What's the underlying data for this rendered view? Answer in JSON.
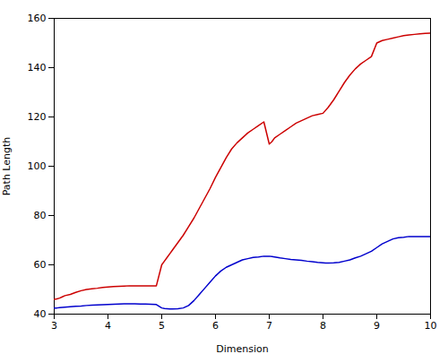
{
  "chart_data": {
    "type": "line",
    "xlabel": "Dimension",
    "ylabel": "Path Length",
    "xlim": [
      3,
      10
    ],
    "ylim": [
      40,
      160
    ],
    "xticks": [
      3,
      4,
      5,
      6,
      7,
      8,
      9,
      10
    ],
    "yticks": [
      40,
      60,
      80,
      100,
      120,
      140,
      160
    ],
    "grid": false,
    "series": [
      {
        "color": "#0000cd",
        "x": [
          3.0,
          3.05,
          3.1,
          3.15,
          3.2,
          3.3,
          3.4,
          3.5,
          3.6,
          3.7,
          3.8,
          3.9,
          4.0,
          4.1,
          4.2,
          4.3,
          4.4,
          4.5,
          4.6,
          4.7,
          4.8,
          4.9,
          5.0,
          5.05,
          5.1,
          5.15,
          5.2,
          5.3,
          5.4,
          5.5,
          5.6,
          5.7,
          5.8,
          5.9,
          6.0,
          6.1,
          6.2,
          6.3,
          6.4,
          6.5,
          6.6,
          6.7,
          6.8,
          6.9,
          7.0,
          7.05,
          7.1,
          7.15,
          7.2,
          7.3,
          7.4,
          7.5,
          7.6,
          7.7,
          7.8,
          7.9,
          8.0,
          8.05,
          8.1,
          8.2,
          8.3,
          8.4,
          8.5,
          8.6,
          8.7,
          8.8,
          8.9,
          9.0,
          9.1,
          9.2,
          9.3,
          9.4,
          9.5,
          9.6,
          9.7,
          9.8,
          9.9,
          10.0
        ],
        "values": [
          42.5,
          42.5,
          42.6,
          42.7,
          42.8,
          43.0,
          43.2,
          43.3,
          43.5,
          43.6,
          43.7,
          43.8,
          43.9,
          44.0,
          44.1,
          44.2,
          44.2,
          44.2,
          44.1,
          44.1,
          44.0,
          43.9,
          42.5,
          42.3,
          42.2,
          42.1,
          42.1,
          42.2,
          42.5,
          43.5,
          45.5,
          48.0,
          50.5,
          53.0,
          55.5,
          57.5,
          59.0,
          60.0,
          61.0,
          62.0,
          62.5,
          63.0,
          63.2,
          63.5,
          63.5,
          63.4,
          63.2,
          63.0,
          62.8,
          62.5,
          62.2,
          62.0,
          61.8,
          61.5,
          61.3,
          61.0,
          60.8,
          60.7,
          60.7,
          60.8,
          61.0,
          61.5,
          62.0,
          62.8,
          63.5,
          64.5,
          65.5,
          67.0,
          68.5,
          69.5,
          70.5,
          71.0,
          71.2,
          71.5,
          71.5,
          71.5,
          71.5,
          71.5
        ]
      },
      {
        "color": "#cc0000",
        "x": [
          3.0,
          3.05,
          3.1,
          3.15,
          3.2,
          3.3,
          3.4,
          3.5,
          3.6,
          3.7,
          3.8,
          3.9,
          4.0,
          4.1,
          4.2,
          4.3,
          4.4,
          4.5,
          4.6,
          4.7,
          4.8,
          4.9,
          5.0,
          5.05,
          5.1,
          5.15,
          5.2,
          5.3,
          5.4,
          5.5,
          5.6,
          5.7,
          5.8,
          5.9,
          6.0,
          6.1,
          6.2,
          6.3,
          6.4,
          6.5,
          6.6,
          6.7,
          6.8,
          6.9,
          7.0,
          7.05,
          7.1,
          7.2,
          7.3,
          7.4,
          7.5,
          7.6,
          7.7,
          7.8,
          7.9,
          8.0,
          8.1,
          8.2,
          8.3,
          8.4,
          8.5,
          8.6,
          8.7,
          8.8,
          8.9,
          9.0,
          9.1,
          9.2,
          9.3,
          9.4,
          9.5,
          9.6,
          9.7,
          9.8,
          9.9,
          10.0
        ],
        "values": [
          46.0,
          46.2,
          46.5,
          47.0,
          47.5,
          48.0,
          48.8,
          49.5,
          50.0,
          50.3,
          50.5,
          50.8,
          51.0,
          51.2,
          51.3,
          51.4,
          51.5,
          51.5,
          51.5,
          51.5,
          51.5,
          51.5,
          60.0,
          61.5,
          63.0,
          64.5,
          66.0,
          69.0,
          72.0,
          75.5,
          79.0,
          83.0,
          87.0,
          91.0,
          95.5,
          99.5,
          103.5,
          107.0,
          109.5,
          111.5,
          113.5,
          115.0,
          116.5,
          118.0,
          109.0,
          110.0,
          111.5,
          113.0,
          114.5,
          116.0,
          117.5,
          118.5,
          119.5,
          120.5,
          121.0,
          121.5,
          124.0,
          127.0,
          130.5,
          134.0,
          137.0,
          139.5,
          141.5,
          143.0,
          144.5,
          150.0,
          151.0,
          151.5,
          152.0,
          152.5,
          153.0,
          153.3,
          153.5,
          153.7,
          153.9,
          154.0
        ]
      }
    ]
  }
}
